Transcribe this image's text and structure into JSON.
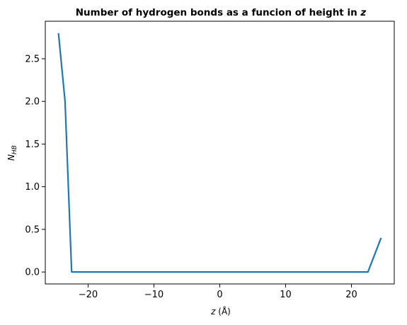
{
  "chart_data": {
    "type": "line",
    "title": "Number of hydrogen bonds as a funcion of height in",
    "title_var": "z",
    "xlabel_var": "z",
    "xlabel_unit": "(Å)",
    "ylabel_var": "N",
    "ylabel_sub": "HB",
    "xlim": [
      -26.5,
      26.5
    ],
    "ylim": [
      -0.14,
      2.94
    ],
    "xticks": [
      -20,
      -10,
      0,
      10,
      20
    ],
    "xtick_labels": [
      "−20",
      "−10",
      "0",
      "10",
      "20"
    ],
    "yticks": [
      0.0,
      0.5,
      1.0,
      1.5,
      2.0,
      2.5
    ],
    "ytick_labels": [
      "0.0",
      "0.5",
      "1.0",
      "1.5",
      "2.0",
      "2.5"
    ],
    "grid": false,
    "series": [
      {
        "color": "#1f77b4",
        "x": [
          -24.5,
          -23.5,
          -22.5,
          -21.5,
          -20.5,
          20.5,
          21.5,
          22.5,
          23.5,
          24.5
        ],
        "y": [
          2.8,
          2.0,
          0.0,
          0.0,
          0.0,
          0.0,
          0.0,
          0.0,
          0.2,
          0.4
        ]
      }
    ]
  }
}
